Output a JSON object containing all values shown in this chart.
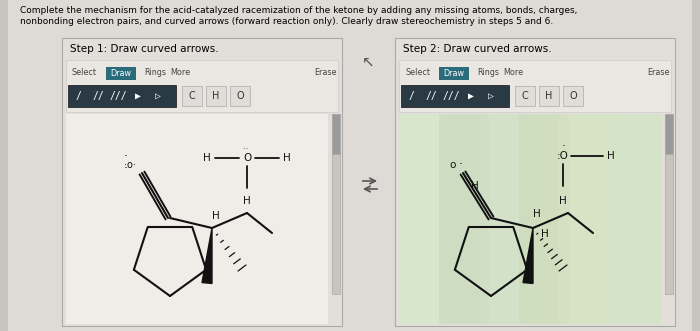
{
  "title1": "Complete the mechanism for the acid-catalyzed racemization of the ketone by adding any missing atoms, bonds, charges,",
  "title2": "nonbonding electron pairs, and curved arrows (forward reaction only). Clearly draw stereochemistry in steps 5 and 6.",
  "bg_color": "#c8c5bf",
  "page_color": "#dedad6",
  "panel_color": "#e2dfda",
  "toolbar_color": "#eae7e2",
  "draw_btn_color": "#2a6b7c",
  "bond_bar_color": "#2a3a44",
  "step1": "Step 1: Draw curved arrows.",
  "step2": "Step 2: Draw curved arrows.",
  "right_panel_bg": "#c5d4b8",
  "scrollbar_color": "#9a9a9a",
  "mol_color": "#111111",
  "separator_color": "#555555"
}
